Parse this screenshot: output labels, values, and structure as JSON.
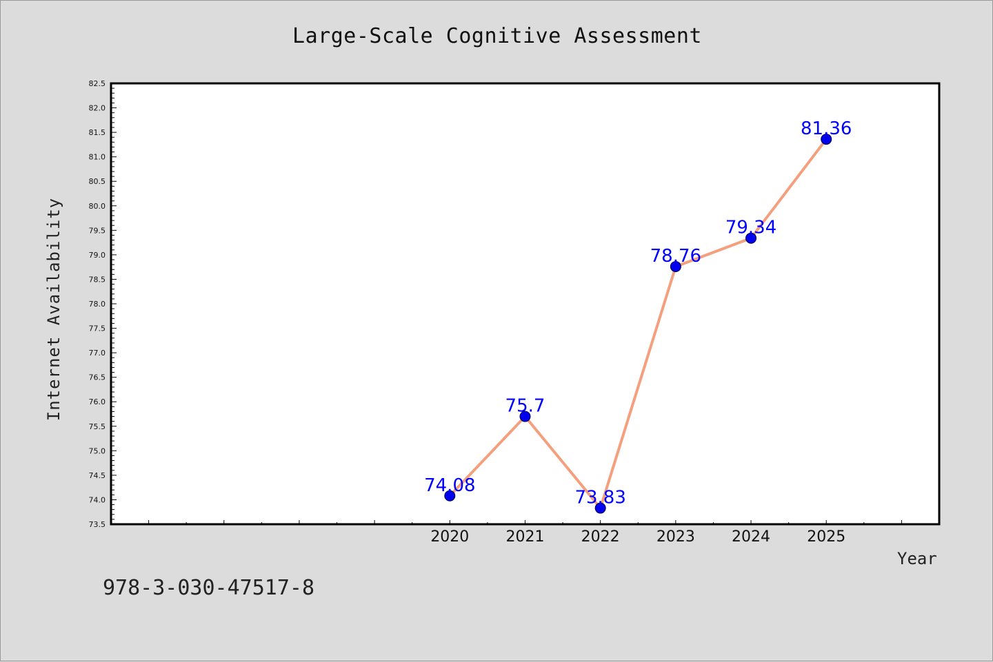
{
  "chart_data": {
    "type": "line",
    "title": "Large-Scale Cognitive Assessment",
    "xlabel": "Year",
    "ylabel": "Internet Availability",
    "x": [
      2020,
      2021,
      2022,
      2023,
      2024,
      2025
    ],
    "x_tick_labels": [
      "2020",
      "2021",
      "2022",
      "2023",
      "2024",
      "2025"
    ],
    "xlim": [
      2015.5,
      2026.5
    ],
    "ylim": [
      73.5,
      82.5
    ],
    "y_tick_labels": [
      "73.5",
      "74.0",
      "74.5",
      "75.0",
      "75.5",
      "76.0",
      "76.5",
      "77.0",
      "77.5",
      "78.0",
      "78.5",
      "79.0",
      "79.5",
      "80.0",
      "80.5",
      "81.0",
      "81.5",
      "82.0",
      "82.5"
    ],
    "series": [
      {
        "values": [
          74.08,
          75.7,
          73.83,
          78.76,
          79.34,
          81.36
        ],
        "data_labels": [
          "74.08",
          "75.7",
          "73.83",
          "78.76",
          "79.34",
          "81.36"
        ],
        "line_color": "#f4a07e",
        "marker_color": "#0000ee"
      }
    ],
    "label_color": "#0000ff",
    "grid": false,
    "legend": false
  },
  "footnote": "978-3-030-47517-8"
}
